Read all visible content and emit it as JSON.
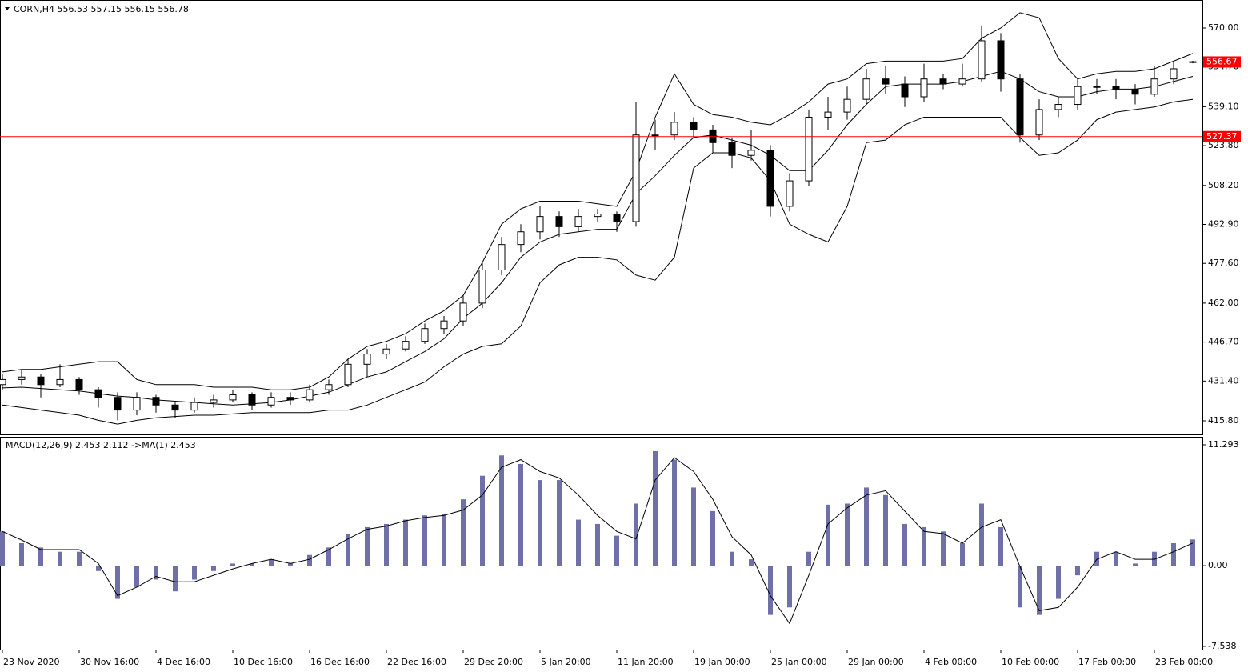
{
  "chart_data": [
    {
      "type": "candlestick",
      "title": "CORN,H4  556.53 557.15 556.15 556.78",
      "x": [
        0,
        1,
        2,
        3,
        4,
        5,
        6,
        7,
        8,
        9,
        10,
        11,
        12,
        13,
        14,
        15,
        16,
        17,
        18,
        19,
        20,
        21,
        22,
        23,
        24,
        25,
        26,
        27,
        28,
        29,
        30,
        31,
        32,
        33,
        34,
        35,
        36,
        37,
        38,
        39,
        40,
        41,
        42,
        43,
        44,
        45,
        46,
        47,
        48,
        49,
        50,
        51,
        52,
        53,
        54,
        55,
        56,
        57,
        58,
        59,
        60,
        61,
        62
      ],
      "xlim": [
        -0.125,
        62.5
      ],
      "open": [
        430,
        432,
        433,
        430,
        432,
        428,
        425,
        420,
        425,
        422,
        420,
        423,
        424,
        426,
        422,
        425,
        424,
        428,
        430,
        438,
        442,
        444,
        447,
        452,
        455,
        462,
        475,
        485,
        490,
        496,
        492,
        496,
        497,
        494,
        528,
        528,
        533,
        530,
        525,
        520,
        522,
        500,
        510,
        535,
        537,
        542,
        550,
        548,
        543,
        550,
        548,
        550,
        565,
        550,
        528,
        538,
        540,
        547,
        547,
        546,
        544,
        550,
        556.53
      ],
      "high": [
        434,
        436,
        434,
        438,
        433,
        429,
        427,
        427,
        426,
        423,
        425,
        426,
        428,
        427,
        427,
        427,
        430,
        432,
        440,
        444,
        446,
        449,
        454,
        457,
        465,
        478,
        488,
        493,
        500,
        498,
        499,
        499,
        498,
        541,
        534,
        537,
        535,
        532,
        527,
        530,
        524,
        513,
        538,
        543,
        547,
        554,
        555,
        551,
        556,
        552,
        556,
        571,
        568,
        552,
        542,
        543,
        550,
        550,
        550,
        548,
        555,
        557,
        557.15
      ],
      "low": [
        428,
        430,
        425,
        429,
        426,
        421,
        416,
        418,
        419,
        417,
        419,
        421,
        423,
        420,
        421,
        422,
        423,
        426,
        429,
        433,
        440,
        443,
        446,
        450,
        453,
        460,
        473,
        482,
        487,
        488,
        490,
        494,
        490,
        492,
        522,
        526,
        527,
        521,
        515,
        518,
        496,
        498,
        508,
        530,
        534,
        540,
        544,
        539,
        541,
        546,
        547,
        549,
        545,
        525,
        526,
        535,
        538,
        544,
        542,
        540,
        543,
        548,
        556.15
      ],
      "close": [
        432,
        433,
        430,
        432,
        428,
        425,
        420,
        425,
        422,
        420,
        423,
        424,
        426,
        422,
        425,
        424,
        428,
        430,
        438,
        442,
        444,
        447,
        452,
        455,
        462,
        475,
        485,
        490,
        496,
        492,
        496,
        497,
        494,
        528,
        528,
        533,
        530,
        525,
        520,
        522,
        500,
        510,
        535,
        537,
        542,
        550,
        548,
        543,
        550,
        548,
        550,
        565,
        550,
        528,
        538,
        540,
        547,
        547,
        546,
        544,
        550,
        554,
        556.78
      ],
      "bands": {
        "upper": [
          435,
          436,
          436,
          437,
          438,
          439,
          439,
          432,
          430,
          430,
          430,
          429,
          429,
          429,
          428,
          428,
          429,
          433,
          440,
          445,
          447,
          450,
          455,
          459,
          465,
          478,
          493,
          499,
          502,
          502,
          502,
          501,
          500,
          514,
          535,
          552,
          540,
          536,
          535,
          533,
          532,
          536,
          541,
          548,
          550,
          556,
          557,
          557,
          557,
          557,
          558,
          566,
          570,
          576,
          574,
          558,
          550,
          552,
          553,
          553,
          554,
          557,
          560
        ],
        "middle": [
          428.7,
          429,
          428.5,
          428,
          427.5,
          426.5,
          425.5,
          425,
          424,
          423.5,
          423,
          422.5,
          422,
          422.5,
          423,
          424,
          425.5,
          427,
          430,
          433,
          435,
          439,
          443,
          448,
          456,
          462,
          470,
          480,
          486,
          489,
          490,
          491,
          491,
          505,
          512,
          520,
          527,
          528,
          526,
          524,
          520,
          514,
          514,
          522,
          532,
          540,
          547,
          548,
          548,
          548,
          549,
          551,
          553,
          550,
          545,
          543,
          543,
          545,
          546,
          546,
          547,
          549,
          551
        ],
        "lower": [
          422,
          421,
          420,
          419,
          418,
          416,
          414.5,
          416,
          417,
          417.5,
          418,
          418,
          418.5,
          419,
          419,
          419,
          419,
          420,
          420,
          422,
          425,
          428,
          431,
          437,
          442,
          445,
          446,
          453,
          470,
          477,
          480,
          480,
          479,
          473,
          471,
          480,
          515,
          521,
          521,
          519,
          510,
          493,
          489,
          486,
          500,
          525,
          526,
          532,
          535,
          535,
          535,
          535,
          535,
          527,
          520,
          521,
          526,
          534,
          537,
          538,
          539,
          541,
          542
        ]
      },
      "ylim": [
        410.46,
        581.0
      ],
      "yticks": [
        {
          "value": 415.8,
          "label": "415.80"
        },
        {
          "value": 431.4,
          "label": "431.40"
        },
        {
          "value": 446.7,
          "label": "446.70"
        },
        {
          "value": 462.0,
          "label": "462.00"
        },
        {
          "value": 477.6,
          "label": "477.60"
        },
        {
          "value": 492.9,
          "label": "492.90"
        },
        {
          "value": 508.2,
          "label": "508.20"
        },
        {
          "value": 523.8,
          "label": "523.80"
        },
        {
          "value": 539.1,
          "label": "539.10"
        },
        {
          "value": 554.7,
          "label": "554.70"
        },
        {
          "value": 570.0,
          "label": "570.00"
        }
      ],
      "levels": [
        556.67,
        527.37
      ],
      "level_color": "#ff0000",
      "up_color": "#ffffff",
      "down_color": "#000000",
      "wick_color": "#000000",
      "band_color": "#000000"
    },
    {
      "type": "macd",
      "title": "MACD(12,26,9) 2.453 2.112  ->MA(1) 2.453",
      "values": [
        3.2,
        2.1,
        1.7,
        1.3,
        1.3,
        -0.5,
        -3.1,
        -2,
        -1.3,
        -2.4,
        -1.3,
        -0.5,
        0.2,
        0.2,
        0.6,
        0.2,
        1,
        1.7,
        3,
        3.6,
        3.9,
        4.3,
        4.7,
        4.8,
        6.2,
        8.4,
        10.3,
        9.5,
        8,
        8,
        4.3,
        3.9,
        2.8,
        5.8,
        10.7,
        9.9,
        7.3,
        5.1,
        1.3,
        0.6,
        -4.6,
        -3.9,
        1.3,
        5.7,
        5.8,
        7.3,
        6.6,
        3.9,
        3.6,
        3.2,
        2.1,
        5.8,
        3.6,
        -3.9,
        -4.6,
        -3.1,
        -0.9,
        1.3,
        1.3,
        0.2,
        1.3,
        2.1,
        2.453
      ],
      "signal": [
        3.2,
        2.4,
        1.5,
        1.5,
        1.5,
        0.2,
        -2.8,
        -2,
        -1,
        -1.5,
        -1.5,
        -0.9,
        -0.3,
        0.2,
        0.6,
        0.2,
        0.6,
        1.5,
        2.5,
        3.4,
        3.7,
        4.2,
        4.5,
        4.7,
        5.2,
        6.6,
        9.2,
        9.9,
        8.8,
        8.2,
        6.6,
        4.7,
        3.2,
        2.5,
        8,
        10.1,
        8.8,
        6.2,
        2.7,
        1,
        -2.8,
        -5.4,
        -0.9,
        3.9,
        5.4,
        6.6,
        7,
        5.1,
        3.2,
        3,
        2.1,
        3.6,
        4.3,
        -0.1,
        -4.2,
        -3.9,
        -2,
        0.6,
        1.3,
        0.6,
        0.6,
        1.3,
        2.112
      ],
      "ylim": [
        -7.84,
        12.04
      ],
      "yticks": [
        11.293,
        {
          "value": 0,
          "label": "0.00"
        },
        -7.538
      ],
      "xticks": [
        {
          "value": 0,
          "label": "23 Nov 2020"
        },
        {
          "value": 4,
          "label": "30 Nov 16:00"
        },
        {
          "value": 8,
          "label": "4 Dec 16:00"
        },
        {
          "value": 12,
          "label": "10 Dec 16:00"
        },
        {
          "value": 16,
          "label": "16 Dec 16:00"
        },
        {
          "value": 20,
          "label": "22 Dec 16:00"
        },
        {
          "value": 24,
          "label": "29 Dec 20:00"
        },
        {
          "value": 28,
          "label": "5 Jan 20:00"
        },
        {
          "value": 32,
          "label": "11 Jan 20:00"
        },
        {
          "value": 36,
          "label": "19 Jan 00:00"
        },
        {
          "value": 40,
          "label": "25 Jan 00:00"
        },
        {
          "value": 44,
          "label": "29 Jan 00:00"
        },
        {
          "value": 48,
          "label": "4 Feb 00:00"
        },
        {
          "value": 52,
          "label": "10 Feb 00:00"
        },
        {
          "value": 56,
          "label": "17 Feb 00:00"
        },
        {
          "value": 60,
          "label": "23 Feb 00:00"
        }
      ],
      "hist_color": "#7070a8",
      "signal_color": "#000000"
    }
  ]
}
